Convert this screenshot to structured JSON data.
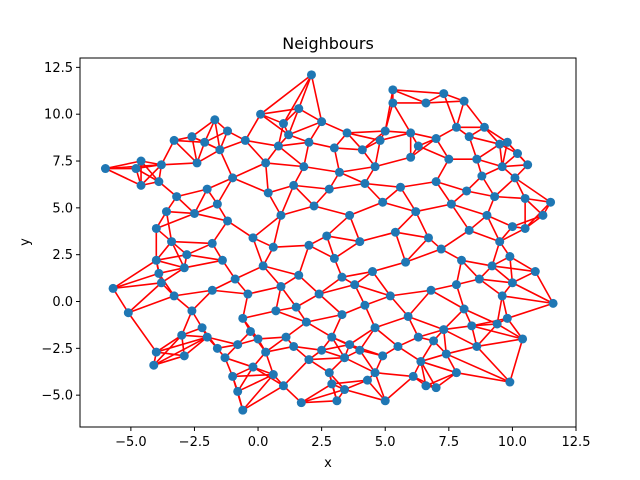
{
  "chart_data": {
    "type": "scatter",
    "title": "Neighbours",
    "xlabel": "x",
    "ylabel": "y",
    "xlim": [
      -7.0,
      12.5
    ],
    "ylim": [
      -6.7,
      13.0
    ],
    "xticks": [
      -5.0,
      -2.5,
      0.0,
      2.5,
      5.0,
      7.5,
      10.0,
      12.5
    ],
    "xtick_labels": [
      "−5.0",
      "−2.5",
      "0.0",
      "2.5",
      "5.0",
      "7.5",
      "10.0",
      "12.5"
    ],
    "yticks": [
      -5.0,
      -2.5,
      0.0,
      2.5,
      5.0,
      7.5,
      10.0,
      12.5
    ],
    "ytick_labels": [
      "−5.0",
      "−2.5",
      "0.0",
      "2.5",
      "5.0",
      "7.5",
      "10.0",
      "12.5"
    ],
    "grid": false,
    "point_color": "#1f77b4",
    "edge_color": "#ff0000",
    "series": [
      {
        "kind": "points",
        "points": [
          [
            -6.0,
            7.1
          ],
          [
            -5.7,
            0.7
          ],
          [
            -5.1,
            -0.6
          ],
          [
            -4.0,
            -2.7
          ],
          [
            -4.1,
            -3.4
          ],
          [
            -4.6,
            7.5
          ],
          [
            -4.8,
            7.1
          ],
          [
            -4.6,
            6.2
          ],
          [
            -3.8,
            7.3
          ],
          [
            -3.9,
            6.4
          ],
          [
            -4.0,
            3.9
          ],
          [
            -4.0,
            2.2
          ],
          [
            -3.8,
            1.0
          ],
          [
            -2.9,
            1.8
          ],
          [
            -2.9,
            -2.9
          ],
          [
            -1.7,
            9.7
          ],
          [
            -1.2,
            9.1
          ],
          [
            -1.0,
            -4.0
          ],
          [
            -0.8,
            -4.8
          ],
          [
            -0.6,
            -5.8
          ],
          [
            -0.2,
            -3.5
          ],
          [
            0.6,
            -3.9
          ],
          [
            1.0,
            -4.5
          ],
          [
            1.7,
            -5.4
          ],
          [
            2.1,
            12.1
          ],
          [
            1.6,
            10.3
          ],
          [
            2.8,
            -3.8
          ],
          [
            2.9,
            -4.4
          ],
          [
            3.1,
            -5.3
          ],
          [
            3.4,
            -4.7
          ],
          [
            4.3,
            -4.2
          ],
          [
            4.6,
            -3.8
          ],
          [
            5.0,
            -5.3
          ],
          [
            5.3,
            10.6
          ],
          [
            5.3,
            11.3
          ],
          [
            6.6,
            10.6
          ],
          [
            7.3,
            11.1
          ],
          [
            8.1,
            10.7
          ],
          [
            6.1,
            -4.0
          ],
          [
            6.6,
            -4.5
          ],
          [
            7.0,
            -4.6
          ],
          [
            7.8,
            -3.8
          ],
          [
            9.9,
            -4.3
          ],
          [
            10.4,
            -2.0
          ],
          [
            10.9,
            1.6
          ],
          [
            11.6,
            -0.1
          ],
          [
            11.5,
            5.3
          ],
          [
            11.2,
            4.6
          ],
          [
            10.5,
            5.5
          ],
          [
            10.5,
            3.9
          ],
          [
            10.0,
            4.0
          ],
          [
            10.2,
            7.9
          ],
          [
            10.6,
            7.3
          ],
          [
            9.8,
            8.5
          ],
          [
            8.9,
            9.3
          ],
          [
            7.8,
            9.3
          ],
          [
            6.0,
            9.0
          ],
          [
            4.8,
            8.6
          ],
          [
            3.5,
            9.0
          ],
          [
            2.5,
            9.6
          ],
          [
            1.0,
            9.5
          ],
          [
            0.1,
            10.0
          ],
          [
            -2.1,
            8.5
          ],
          [
            -2.6,
            8.8
          ],
          [
            -3.3,
            8.6
          ],
          [
            -1.5,
            8.1
          ],
          [
            0.8,
            8.3
          ],
          [
            2.0,
            8.5
          ],
          [
            4.1,
            8.1
          ],
          [
            6.3,
            8.3
          ],
          [
            8.3,
            8.8
          ],
          [
            9.5,
            8.4
          ],
          [
            -3.2,
            5.6
          ],
          [
            -2.5,
            4.7
          ],
          [
            -1.8,
            3.1
          ],
          [
            -3.4,
            3.2
          ],
          [
            -3.3,
            0.3
          ],
          [
            -2.6,
            -0.5
          ],
          [
            -2.2,
            -1.4
          ],
          [
            -1.6,
            -2.5
          ],
          [
            -0.8,
            -2.3
          ],
          [
            0.3,
            -2.7
          ],
          [
            1.4,
            -2.4
          ],
          [
            2.5,
            -2.6
          ],
          [
            3.6,
            -2.3
          ],
          [
            4.9,
            -2.9
          ],
          [
            6.4,
            -3.2
          ],
          [
            7.4,
            -2.8
          ],
          [
            8.6,
            -2.4
          ],
          [
            9.4,
            -1.2
          ],
          [
            9.6,
            0.3
          ],
          [
            9.2,
            1.9
          ],
          [
            9.5,
            3.2
          ],
          [
            9.3,
            5.6
          ],
          [
            8.8,
            6.7
          ],
          [
            7.5,
            7.6
          ],
          [
            6.0,
            7.7
          ],
          [
            4.6,
            7.2
          ],
          [
            3.2,
            6.9
          ],
          [
            1.8,
            7.2
          ],
          [
            0.3,
            7.4
          ],
          [
            -1.0,
            6.6
          ],
          [
            -2.0,
            6.0
          ],
          [
            -1.2,
            4.3
          ],
          [
            -0.2,
            3.4
          ],
          [
            0.9,
            4.6
          ],
          [
            2.2,
            5.1
          ],
          [
            3.6,
            4.6
          ],
          [
            4.9,
            5.3
          ],
          [
            6.2,
            4.8
          ],
          [
            7.6,
            5.2
          ],
          [
            8.3,
            3.8
          ],
          [
            7.2,
            2.8
          ],
          [
            5.8,
            2.1
          ],
          [
            4.5,
            1.6
          ],
          [
            3.0,
            2.3
          ],
          [
            1.6,
            1.4
          ],
          [
            0.2,
            1.9
          ],
          [
            -0.9,
            1.2
          ],
          [
            -1.8,
            0.6
          ],
          [
            -0.6,
            -0.9
          ],
          [
            0.7,
            -0.5
          ],
          [
            1.9,
            -1.1
          ],
          [
            3.3,
            -0.7
          ],
          [
            4.6,
            -1.4
          ],
          [
            5.9,
            -0.8
          ],
          [
            7.3,
            -1.5
          ],
          [
            8.1,
            -0.4
          ],
          [
            6.8,
            0.6
          ],
          [
            5.2,
            0.3
          ],
          [
            3.8,
            0.9
          ],
          [
            2.4,
            0.4
          ],
          [
            1.1,
            -1.9
          ],
          [
            -0.3,
            -1.6
          ],
          [
            -2.0,
            -1.9
          ],
          [
            2.7,
            3.5
          ],
          [
            4.0,
            3.2
          ],
          [
            5.4,
            3.7
          ],
          [
            6.7,
            3.4
          ],
          [
            8.0,
            2.2
          ],
          [
            -2.8,
            2.5
          ],
          [
            -1.4,
            2.2
          ],
          [
            0.4,
            5.8
          ],
          [
            1.4,
            6.2
          ],
          [
            2.8,
            6.0
          ],
          [
            4.2,
            6.3
          ],
          [
            5.6,
            6.1
          ],
          [
            7.0,
            6.4
          ],
          [
            8.2,
            5.9
          ],
          [
            9.0,
            4.6
          ],
          [
            -3.6,
            4.8
          ],
          [
            -3.9,
            1.5
          ],
          [
            -3.0,
            -1.8
          ],
          [
            -1.3,
            -3.0
          ],
          [
            0.0,
            -2.0
          ],
          [
            2.0,
            -3.1
          ],
          [
            3.4,
            -3.0
          ],
          [
            5.5,
            -2.4
          ],
          [
            6.9,
            -2.1
          ],
          [
            8.4,
            -1.3
          ],
          [
            9.8,
            -0.9
          ],
          [
            10.0,
            1.0
          ],
          [
            9.9,
            2.4
          ],
          [
            -2.4,
            7.4
          ],
          [
            -0.5,
            8.6
          ],
          [
            1.2,
            8.9
          ],
          [
            3.0,
            8.2
          ],
          [
            5.0,
            9.1
          ],
          [
            7.0,
            8.7
          ],
          [
            8.6,
            7.6
          ],
          [
            9.6,
            7.2
          ],
          [
            10.1,
            6.6
          ],
          [
            -1.6,
            5.2
          ],
          [
            0.6,
            2.9
          ],
          [
            2.0,
            3.0
          ],
          [
            3.3,
            1.3
          ],
          [
            4.2,
            -0.2
          ],
          [
            6.3,
            -1.9
          ],
          [
            7.8,
            0.9
          ],
          [
            8.7,
            1.2
          ],
          [
            0.9,
            0.8
          ],
          [
            -0.4,
            0.4
          ],
          [
            1.5,
            -0.3
          ],
          [
            2.9,
            -1.9
          ],
          [
            4.0,
            -2.6
          ]
        ]
      }
    ]
  }
}
